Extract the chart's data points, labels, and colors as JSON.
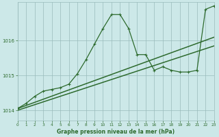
{
  "xlabel": "Graphe pression niveau de la mer (hPa)",
  "background_color": "#cce8e8",
  "grid_color": "#99bbbb",
  "text_color": "#2d6a2d",
  "line_color": "#2d6a2d",
  "x_ticks": [
    0,
    1,
    2,
    3,
    4,
    5,
    6,
    7,
    8,
    9,
    10,
    11,
    12,
    13,
    14,
    15,
    16,
    17,
    18,
    19,
    20,
    21,
    22,
    23
  ],
  "y_ticks": [
    1014,
    1015,
    1016
  ],
  "ylim": [
    1013.7,
    1017.1
  ],
  "xlim": [
    0,
    23
  ],
  "series": [
    {
      "x": [
        0,
        1,
        2,
        3,
        4,
        5,
        6,
        7,
        8,
        9,
        10,
        11,
        12,
        13,
        14,
        15,
        16,
        17,
        18,
        19,
        20,
        21,
        22,
        23
      ],
      "y": [
        1014.05,
        1014.2,
        1014.4,
        1014.55,
        1014.6,
        1014.65,
        1014.75,
        1015.05,
        1015.45,
        1015.9,
        1016.35,
        1016.75,
        1016.75,
        1016.35,
        1015.6,
        1015.6,
        1015.15,
        1015.25,
        1015.15,
        1015.1,
        1015.1,
        1015.15,
        1016.9,
        1017.0
      ],
      "marker": "+",
      "markersize": 3.5,
      "linewidth": 0.9
    },
    {
      "x": [
        0,
        23
      ],
      "y": [
        1014.05,
        1016.1
      ],
      "marker": null,
      "markersize": 0,
      "linewidth": 1.1
    },
    {
      "x": [
        0,
        23
      ],
      "y": [
        1014.0,
        1015.85
      ],
      "marker": null,
      "markersize": 0,
      "linewidth": 1.1
    }
  ]
}
